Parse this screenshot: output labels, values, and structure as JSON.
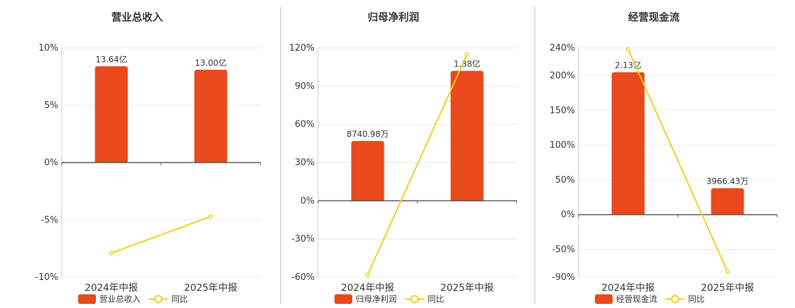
{
  "colors": {
    "bar": "#E84A1C",
    "line": "#F2D01B"
  },
  "legend": {
    "line_label": "同比"
  },
  "chart_data": [
    {
      "type": "bar",
      "title": "营业总收入",
      "categories": [
        "2024年中报",
        "2025年中报"
      ],
      "y_ticks": [
        "10%",
        "5%",
        "0%",
        "-5%",
        "-10%"
      ],
      "ylim": [
        -10,
        10
      ],
      "series": [
        {
          "name": "营业总收入",
          "type": "bar",
          "values": [
            8.4,
            8.1
          ],
          "labels": [
            "13.64亿",
            "13.00亿"
          ]
        },
        {
          "name": "同比",
          "type": "line",
          "values": [
            -7.9,
            -4.7
          ]
        }
      ]
    },
    {
      "type": "bar",
      "title": "归母净利润",
      "categories": [
        "2024年中报",
        "2025年中报"
      ],
      "y_ticks": [
        "120%",
        "90%",
        "60%",
        "30%",
        "0%",
        "-30%",
        "-60%"
      ],
      "ylim": [
        -60,
        120
      ],
      "series": [
        {
          "name": "归母净利润",
          "type": "bar",
          "values": [
            47,
            102
          ],
          "labels": [
            "8740.98万",
            "1.38亿"
          ]
        },
        {
          "name": "同比",
          "type": "line",
          "values": [
            -58,
            115
          ]
        }
      ]
    },
    {
      "type": "bar",
      "title": "经营现金流",
      "categories": [
        "2024年中报",
        "2025年中报"
      ],
      "y_ticks": [
        "240%",
        "200%",
        "150%",
        "100%",
        "50%",
        "0%",
        "-50%",
        "-90%"
      ],
      "ylim": [
        -90,
        240
      ],
      "series": [
        {
          "name": "经营现金流",
          "type": "bar",
          "values": [
            205,
            38
          ],
          "labels": [
            "2.13亿",
            "3966.43万"
          ]
        },
        {
          "name": "同比",
          "type": "line",
          "values": [
            238,
            -82
          ]
        }
      ]
    }
  ]
}
